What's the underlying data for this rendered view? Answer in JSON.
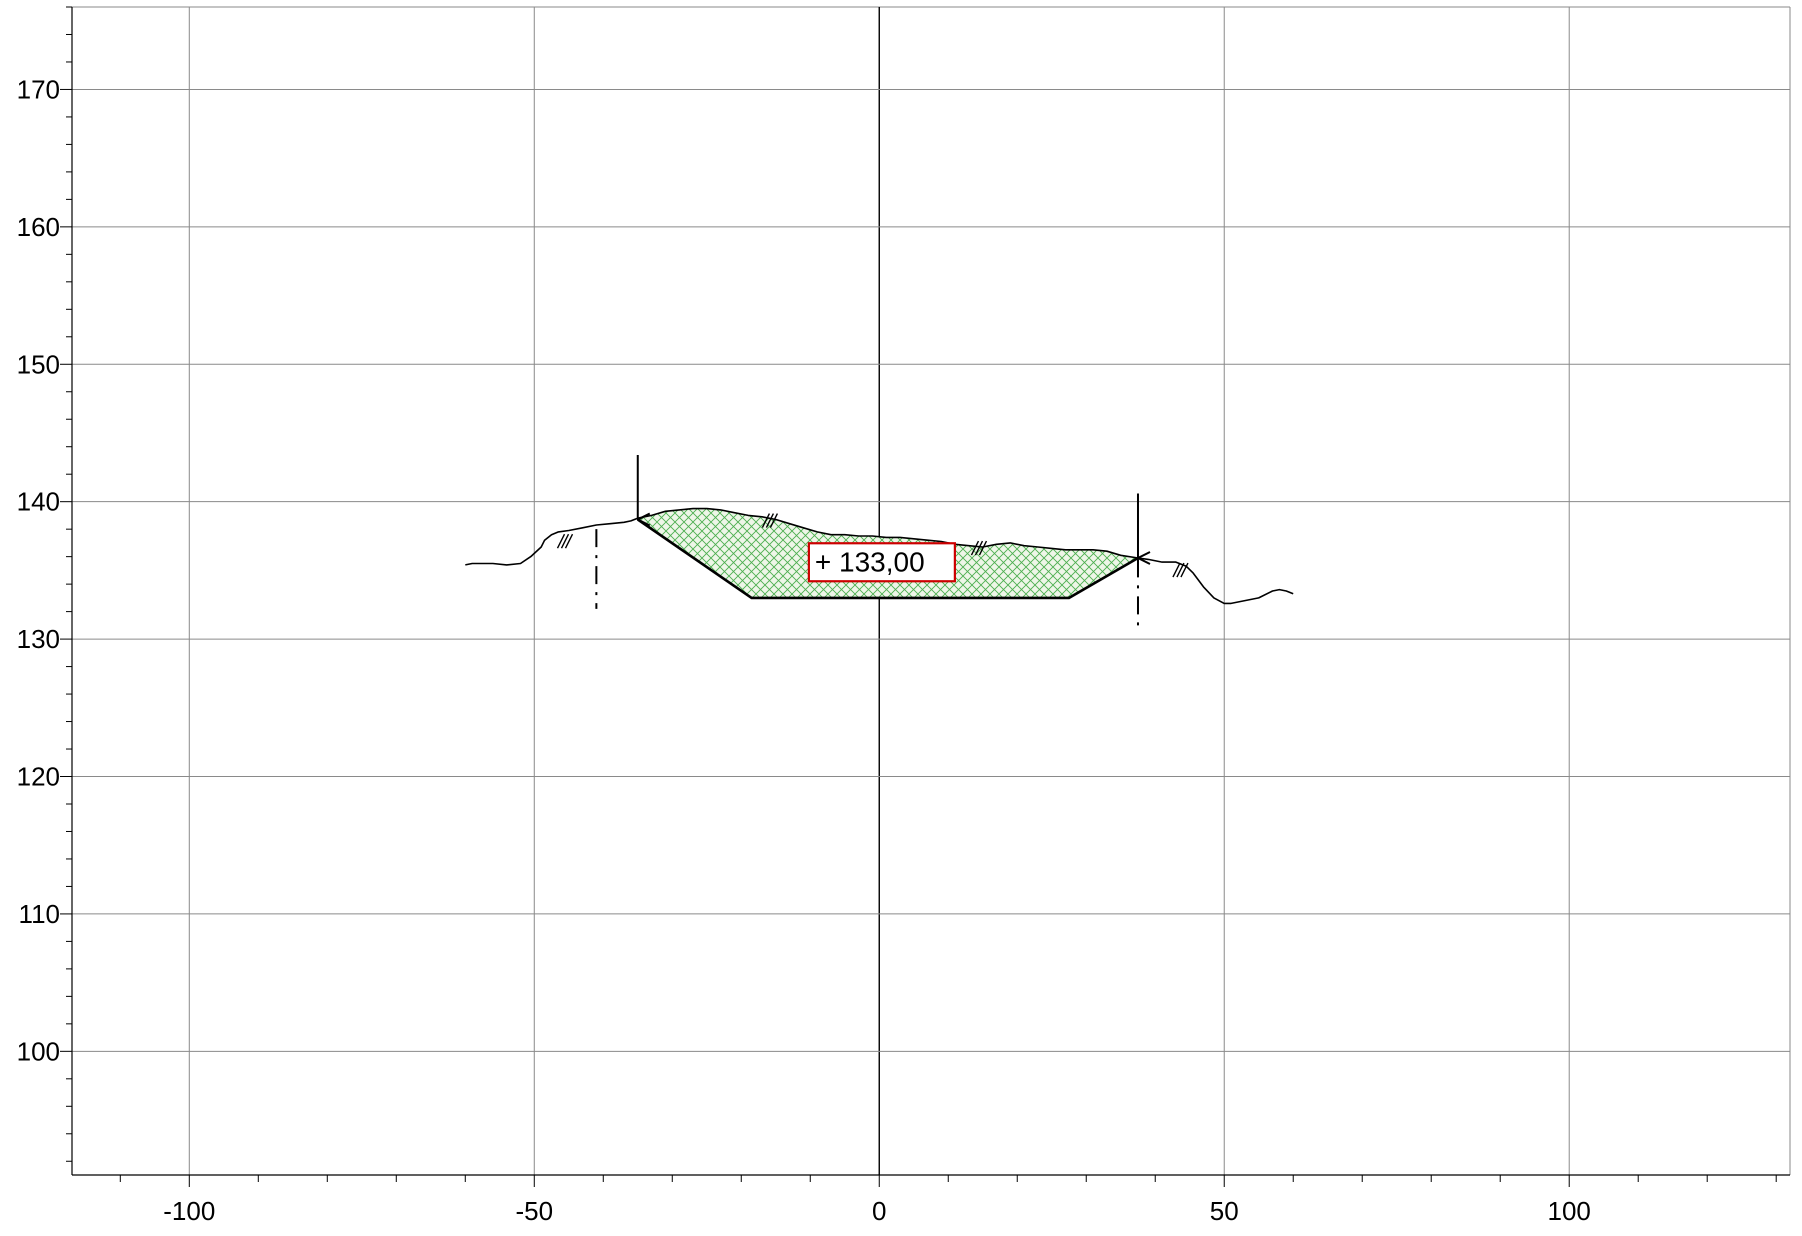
{
  "chart_data": {
    "type": "cross-section",
    "title": "",
    "xlabel": "",
    "ylabel": "",
    "xlim": [
      -117,
      132
    ],
    "ylim": [
      91,
      176
    ],
    "grid": true,
    "x_ticks": [
      -100,
      -50,
      0,
      50,
      100
    ],
    "x_tick_labels": [
      "-100",
      "-50",
      "0",
      "50",
      "100"
    ],
    "y_ticks": [
      100,
      110,
      120,
      130,
      140,
      150,
      160,
      170
    ],
    "y_tick_labels": [
      "100",
      "110",
      "120",
      "130",
      "140",
      "150",
      "160",
      "170"
    ],
    "x_minor_step": 10,
    "y_minor_step": 2,
    "terrain": {
      "name": "",
      "x": [
        -60,
        -59,
        -58,
        -56,
        -54,
        -52,
        -50.5,
        -49,
        -48.5,
        -47.5,
        -46.5,
        -45,
        -43,
        -41,
        -39,
        -37,
        -36,
        -35,
        -33,
        -31,
        -29,
        -27,
        -25,
        -23,
        -21,
        -19,
        -17,
        -15,
        -13,
        -11,
        -9,
        -7,
        -5,
        -3,
        -1,
        1,
        3,
        5,
        7,
        9,
        11,
        13,
        15,
        17,
        19,
        21,
        23,
        25,
        27,
        29,
        31,
        33,
        35,
        37.5,
        39,
        41,
        43,
        44.5,
        45.5,
        47,
        48.5,
        50,
        51,
        53,
        55,
        57,
        58,
        59,
        60
      ],
      "y": [
        135.4,
        135.5,
        135.5,
        135.5,
        135.4,
        135.5,
        136.0,
        136.7,
        137.2,
        137.6,
        137.8,
        137.9,
        138.1,
        138.3,
        138.4,
        138.5,
        138.6,
        138.8,
        139.0,
        139.3,
        139.4,
        139.5,
        139.5,
        139.4,
        139.2,
        139.0,
        138.9,
        138.7,
        138.4,
        138.1,
        137.8,
        137.6,
        137.6,
        137.5,
        137.5,
        137.4,
        137.4,
        137.3,
        137.2,
        137.1,
        136.9,
        136.8,
        136.7,
        136.9,
        137.0,
        136.8,
        136.7,
        136.6,
        136.5,
        136.5,
        136.5,
        136.4,
        136.1,
        135.9,
        135.8,
        135.6,
        135.6,
        135.3,
        134.8,
        133.8,
        133.0,
        132.6,
        132.6,
        132.8,
        133.0,
        133.5,
        133.6,
        133.5,
        133.3
      ]
    },
    "excavation": {
      "left_top": [
        -35,
        138.7
      ],
      "bottom_left": [
        -18.5,
        133.0
      ],
      "bottom_right": [
        27.5,
        133.0
      ],
      "right_top": [
        37.5,
        135.9
      ],
      "fill": "#4caf50",
      "bottom_level": 133.0
    },
    "annotations": [
      {
        "kind": "elevation-box",
        "text": "+ 133,00",
        "x": -10.2,
        "y": 134.5,
        "color": "#cc0000"
      },
      {
        "kind": "arrow",
        "x": -35,
        "y_from": 143.4,
        "y_to": 138.7
      },
      {
        "kind": "arrow",
        "x": 37.5,
        "y_from": 140.6,
        "y_to": 135.9
      },
      {
        "kind": "dash-dot-line",
        "x": -41,
        "y_from": 138.0,
        "y_to": 132.2
      },
      {
        "kind": "dash-dot-line",
        "x": 37.5,
        "y_from": 135.8,
        "y_to": 130.5
      },
      {
        "kind": "slope-mark",
        "x": -46.2,
        "y": 137.2
      },
      {
        "kind": "slope-mark",
        "x": -16.5,
        "y": 138.7
      },
      {
        "kind": "slope-mark",
        "x": 13.8,
        "y": 136.7
      },
      {
        "kind": "slope-mark",
        "x": 43.0,
        "y": 135.1
      }
    ]
  }
}
